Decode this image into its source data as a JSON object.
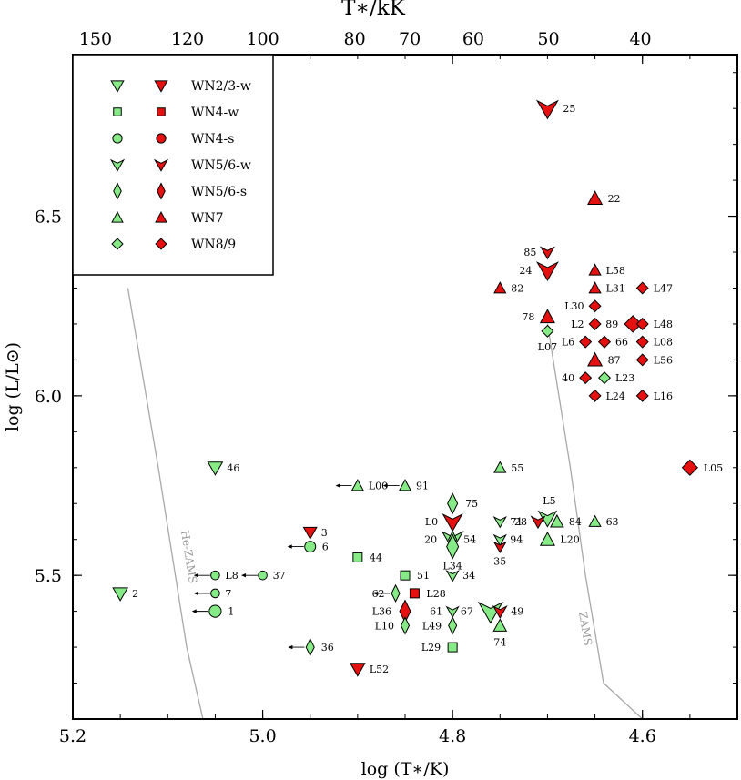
{
  "chart_data": {
    "type": "scatter",
    "xlabel": "log (T∗/K)",
    "ylabel": "log (L/L⊙)",
    "top_xlabel": "T∗/kK",
    "xlim": [
      5.2,
      4.5
    ],
    "ylim": [
      5.1,
      6.95
    ],
    "x_ticks": [
      5.2,
      5.0,
      4.8,
      4.6
    ],
    "x_tick_labels": [
      "5.2",
      "5.0",
      "4.8",
      "4.6"
    ],
    "y_ticks": [
      5.5,
      6.0,
      6.5
    ],
    "y_tick_labels": [
      "5.5",
      "6.0",
      "6.5"
    ],
    "top_ticks": [
      150,
      120,
      100,
      80,
      70,
      60,
      50,
      40
    ],
    "top_tick_labels": [
      "150",
      "120",
      "100",
      "80",
      "70",
      "60",
      "50",
      "40"
    ],
    "legend": [
      {
        "label": "WN2/3-w",
        "shape": "tri-down"
      },
      {
        "label": "WN4-w",
        "shape": "square"
      },
      {
        "label": "WN4-s",
        "shape": "circle"
      },
      {
        "label": "WN5/6-w",
        "shape": "arrow-down"
      },
      {
        "label": "WN5/6-s",
        "shape": "diamond-tall"
      },
      {
        "label": "WN7",
        "shape": "tri-up"
      },
      {
        "label": "WN8/9",
        "shape": "diamond"
      }
    ],
    "legend_position": "top-left",
    "colors": {
      "green": "#86EB86",
      "red": "#E51010",
      "curve": "#a8a8a8"
    },
    "curves": [
      {
        "name": "He-ZAMS",
        "points": [
          [
            5.142,
            6.3
          ],
          [
            5.11,
            5.8
          ],
          [
            5.08,
            5.3
          ],
          [
            5.063,
            5.1
          ]
        ]
      },
      {
        "name": "ZAMS",
        "points": [
          [
            4.7,
            6.2
          ],
          [
            4.676,
            5.8
          ],
          [
            4.66,
            5.5
          ],
          [
            4.641,
            5.2
          ],
          [
            4.6,
            5.1
          ]
        ]
      }
    ],
    "points": [
      {
        "label": "2",
        "x": 5.15,
        "y": 5.45,
        "shape": "tri-down",
        "color": "green",
        "size": 1
      },
      {
        "label": "46",
        "x": 5.05,
        "y": 5.8,
        "shape": "tri-down",
        "color": "green",
        "size": 1
      },
      {
        "label": "L8",
        "x": 5.05,
        "y": 5.5,
        "shape": "circle",
        "color": "green",
        "size": 0.8,
        "arrow": true
      },
      {
        "label": "7",
        "x": 5.05,
        "y": 5.45,
        "shape": "circle",
        "color": "green",
        "size": 0.8,
        "arrow": true
      },
      {
        "label": "1",
        "x": 5.05,
        "y": 5.4,
        "shape": "circle",
        "color": "green",
        "size": 1.1,
        "arrow": true
      },
      {
        "label": "37",
        "x": 5.0,
        "y": 5.5,
        "shape": "circle",
        "color": "green",
        "size": 0.8,
        "arrow": true
      },
      {
        "label": "3",
        "x": 4.95,
        "y": 5.62,
        "shape": "tri-down",
        "color": "red",
        "size": 0.9
      },
      {
        "label": "6",
        "x": 4.95,
        "y": 5.58,
        "shape": "circle",
        "color": "green",
        "size": 1,
        "arrow": true
      },
      {
        "label": "36",
        "x": 4.95,
        "y": 5.3,
        "shape": "diamond-tall",
        "color": "green",
        "size": 0.9,
        "arrow": true
      },
      {
        "label": "L52",
        "x": 4.9,
        "y": 5.24,
        "shape": "tri-down",
        "color": "red",
        "size": 1
      },
      {
        "label": "44",
        "x": 4.9,
        "y": 5.55,
        "shape": "square",
        "color": "green",
        "size": 1
      },
      {
        "label": "L00",
        "x": 4.9,
        "y": 5.75,
        "shape": "tri-up",
        "color": "green",
        "size": 0.9,
        "arrow": true
      },
      {
        "label": "91",
        "x": 4.85,
        "y": 5.75,
        "shape": "tri-up",
        "color": "green",
        "size": 0.9,
        "arrow": true
      },
      {
        "label": "51",
        "x": 4.85,
        "y": 5.5,
        "shape": "square",
        "color": "green",
        "size": 1
      },
      {
        "label": "L28",
        "x": 4.84,
        "y": 5.45,
        "shape": "square",
        "color": "red",
        "size": 1
      },
      {
        "label": "62",
        "x": 4.86,
        "y": 5.45,
        "shape": "diamond-tall",
        "color": "green",
        "size": 0.9,
        "arrow": true,
        "label_side": "left"
      },
      {
        "label": "L36",
        "x": 4.85,
        "y": 5.4,
        "shape": "diamond-tall",
        "color": "red",
        "size": 1.2,
        "label_side": "left"
      },
      {
        "label": "L10",
        "x": 4.85,
        "y": 5.36,
        "shape": "diamond-tall",
        "color": "green",
        "size": 0.9,
        "label_side": "left"
      },
      {
        "label": "75",
        "x": 4.8,
        "y": 5.7,
        "shape": "diamond-tall",
        "color": "green",
        "size": 1.1
      },
      {
        "label": "L0",
        "x": 4.8,
        "y": 5.65,
        "shape": "arrow-down",
        "color": "red",
        "size": 1.3,
        "label_side": "left"
      },
      {
        "label": "20",
        "x": 4.8,
        "y": 5.6,
        "shape": "arrow-down",
        "color": "green",
        "size": 1.4,
        "label_side": "left"
      },
      {
        "label": "54",
        "x": 4.8,
        "y": 5.6,
        "shape": "diamond-tall",
        "color": "green",
        "size": 0.9
      },
      {
        "label": "L34",
        "x": 4.8,
        "y": 5.58,
        "shape": "diamond-tall",
        "color": "green",
        "size": 1.3,
        "label_side": "below"
      },
      {
        "label": "34",
        "x": 4.8,
        "y": 5.5,
        "shape": "arrow-down",
        "color": "green",
        "size": 0.8
      },
      {
        "label": "61",
        "x": 4.8,
        "y": 5.4,
        "shape": "arrow-down",
        "color": "green",
        "size": 0.8,
        "label_side": "left"
      },
      {
        "label": "L49",
        "x": 4.8,
        "y": 5.36,
        "shape": "diamond-tall",
        "color": "green",
        "size": 0.9,
        "label_side": "left"
      },
      {
        "label": "L29",
        "x": 4.8,
        "y": 5.3,
        "shape": "square",
        "color": "green",
        "size": 1,
        "label_side": "left"
      },
      {
        "label": "67",
        "x": 4.76,
        "y": 5.4,
        "shape": "arrow-down",
        "color": "green",
        "size": 1.6,
        "label_side": "left"
      },
      {
        "label": "49",
        "x": 4.75,
        "y": 5.4,
        "shape": "arrow-down",
        "color": "red",
        "size": 0.9
      },
      {
        "label": "74",
        "x": 4.75,
        "y": 5.36,
        "shape": "tri-up",
        "color": "green",
        "size": 1,
        "label_side": "below"
      },
      {
        "label": "55",
        "x": 4.75,
        "y": 5.8,
        "shape": "tri-up",
        "color": "green",
        "size": 0.9
      },
      {
        "label": "71",
        "x": 4.75,
        "y": 5.65,
        "shape": "arrow-down",
        "color": "green",
        "size": 0.8
      },
      {
        "label": "94",
        "x": 4.75,
        "y": 5.6,
        "shape": "arrow-down",
        "color": "green",
        "size": 0.8
      },
      {
        "label": "35",
        "x": 4.75,
        "y": 5.58,
        "shape": "arrow-down",
        "color": "red",
        "size": 0.8,
        "label_side": "below"
      },
      {
        "label": "L5",
        "x": 4.7,
        "y": 5.66,
        "shape": "arrow-down",
        "color": "green",
        "size": 1.2,
        "label_side": "above"
      },
      {
        "label": "28",
        "x": 4.71,
        "y": 5.65,
        "shape": "arrow-down",
        "color": "red",
        "size": 0.9,
        "label_side": "left"
      },
      {
        "label": "84",
        "x": 4.69,
        "y": 5.65,
        "shape": "tri-up",
        "color": "green",
        "size": 1
      },
      {
        "label": "L20",
        "x": 4.7,
        "y": 5.6,
        "shape": "tri-up",
        "color": "green",
        "size": 1.1
      },
      {
        "label": "63",
        "x": 4.65,
        "y": 5.65,
        "shape": "tri-up",
        "color": "green",
        "size": 0.9
      },
      {
        "label": "25",
        "x": 4.7,
        "y": 6.8,
        "shape": "arrow-down",
        "color": "red",
        "size": 1.4
      },
      {
        "label": "22",
        "x": 4.65,
        "y": 6.55,
        "shape": "tri-up",
        "color": "red",
        "size": 1.1
      },
      {
        "label": "85",
        "x": 4.7,
        "y": 6.4,
        "shape": "arrow-down",
        "color": "red",
        "size": 0.9,
        "label_side": "left"
      },
      {
        "label": "24",
        "x": 4.7,
        "y": 6.35,
        "shape": "arrow-down",
        "color": "red",
        "size": 1.4,
        "label_side": "left"
      },
      {
        "label": "82",
        "x": 4.75,
        "y": 6.3,
        "shape": "tri-up",
        "color": "red",
        "size": 0.9
      },
      {
        "label": "78",
        "x": 4.7,
        "y": 6.22,
        "shape": "tri-up",
        "color": "red",
        "size": 1.1,
        "label_side": "left"
      },
      {
        "label": "L07",
        "x": 4.7,
        "y": 6.18,
        "shape": "diamond",
        "color": "green",
        "size": 0.9,
        "label_side": "below"
      },
      {
        "label": "L58",
        "x": 4.65,
        "y": 6.35,
        "shape": "tri-up",
        "color": "red",
        "size": 0.9
      },
      {
        "label": "L31",
        "x": 4.65,
        "y": 6.3,
        "shape": "tri-up",
        "color": "red",
        "size": 0.9
      },
      {
        "label": "L47",
        "x": 4.6,
        "y": 6.3,
        "shape": "diamond",
        "color": "red",
        "size": 0.9
      },
      {
        "label": "L30",
        "x": 4.65,
        "y": 6.25,
        "shape": "diamond",
        "color": "red",
        "size": 0.9,
        "label_side": "left"
      },
      {
        "label": "L2",
        "x": 4.65,
        "y": 6.2,
        "shape": "diamond",
        "color": "red",
        "size": 0.9,
        "label_side": "left"
      },
      {
        "label": "89",
        "x": 4.61,
        "y": 6.2,
        "shape": "diamond",
        "color": "red",
        "size": 1.3,
        "label_side": "left"
      },
      {
        "label": "L48",
        "x": 4.6,
        "y": 6.2,
        "shape": "diamond",
        "color": "red",
        "size": 0.9
      },
      {
        "label": "L6",
        "x": 4.66,
        "y": 6.15,
        "shape": "diamond",
        "color": "red",
        "size": 0.9,
        "label_side": "left"
      },
      {
        "label": "66",
        "x": 4.64,
        "y": 6.15,
        "shape": "diamond",
        "color": "red",
        "size": 0.9
      },
      {
        "label": "L08",
        "x": 4.6,
        "y": 6.15,
        "shape": "diamond",
        "color": "red",
        "size": 0.9
      },
      {
        "label": "87",
        "x": 4.65,
        "y": 6.1,
        "shape": "tri-up",
        "color": "red",
        "size": 1.1
      },
      {
        "label": "L56",
        "x": 4.6,
        "y": 6.1,
        "shape": "diamond",
        "color": "red",
        "size": 0.9
      },
      {
        "label": "40",
        "x": 4.66,
        "y": 6.05,
        "shape": "diamond",
        "color": "red",
        "size": 0.9,
        "label_side": "left"
      },
      {
        "label": "L23",
        "x": 4.64,
        "y": 6.05,
        "shape": "diamond",
        "color": "green",
        "size": 0.9
      },
      {
        "label": "L24",
        "x": 4.65,
        "y": 6.0,
        "shape": "diamond",
        "color": "red",
        "size": 0.9
      },
      {
        "label": "L16",
        "x": 4.6,
        "y": 6.0,
        "shape": "diamond",
        "color": "red",
        "size": 0.9
      },
      {
        "label": "L05",
        "x": 4.55,
        "y": 5.8,
        "shape": "diamond",
        "color": "red",
        "size": 1.2
      }
    ]
  }
}
